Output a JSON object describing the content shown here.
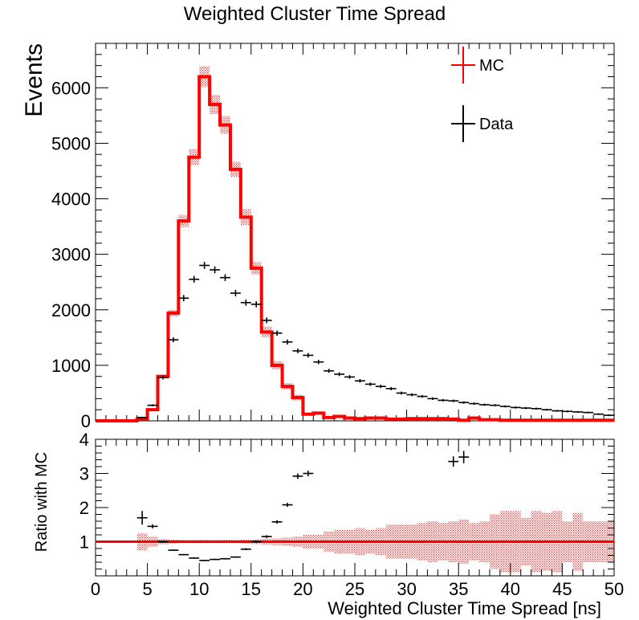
{
  "chart_data": [
    {
      "type": "histogram",
      "title": "Weighted Cluster Time Spread",
      "xlabel": "",
      "ylabel": "Events",
      "xlim": [
        0,
        50
      ],
      "ylim": [
        0,
        6800
      ],
      "yticks": [
        0,
        1000,
        2000,
        3000,
        4000,
        5000,
        6000
      ],
      "bin_width": 1,
      "bin_low_edges": [
        0,
        1,
        2,
        3,
        4,
        5,
        6,
        7,
        8,
        9,
        10,
        11,
        12,
        13,
        14,
        15,
        16,
        17,
        18,
        19,
        20,
        21,
        22,
        23,
        24,
        25,
        26,
        27,
        28,
        29,
        30,
        31,
        32,
        33,
        34,
        35,
        36,
        37,
        38,
        39,
        40,
        41,
        42,
        43,
        44,
        45,
        46,
        47,
        48,
        49
      ],
      "legend": {
        "position": "top-right",
        "entries": [
          "MC",
          "Data"
        ]
      },
      "series": [
        {
          "name": "MC",
          "style": "step",
          "color": "#ff0000",
          "values": [
            0,
            0,
            0,
            0,
            30,
            200,
            800,
            1940,
            3600,
            4750,
            6200,
            5700,
            5330,
            4530,
            3670,
            2750,
            1600,
            1000,
            620,
            420,
            120,
            140,
            60,
            80,
            50,
            40,
            50,
            50,
            30,
            30,
            40,
            40,
            40,
            40,
            30,
            10,
            50,
            20,
            20,
            10,
            10,
            10,
            10,
            10,
            10,
            10,
            10,
            10,
            10,
            10
          ],
          "band_half_width_fraction": [
            0,
            0,
            0,
            0,
            0.15,
            0.07,
            0.04,
            0.03,
            0.03,
            0.03,
            0.03,
            0.03,
            0.03,
            0.03,
            0.04,
            0.04,
            0.06,
            0.07,
            0.09,
            0.12,
            0.18,
            0.18,
            0.25,
            0.3,
            0.3,
            0.3,
            0.3,
            0.35,
            0.4,
            0.45,
            0.45,
            0.5,
            0.55,
            0.5,
            0.55,
            0.6,
            0.6,
            0.6,
            0.7,
            0.8,
            1.0,
            0.8,
            0.9,
            1.0,
            1.0,
            1.0,
            0.8,
            0.8,
            0.8,
            0.8
          ]
        },
        {
          "name": "Data",
          "style": "points",
          "color": "#000000",
          "values": [
            0,
            0,
            0,
            0,
            60,
            280,
            780,
            1460,
            2210,
            2550,
            2800,
            2720,
            2580,
            2300,
            2130,
            2100,
            1810,
            1580,
            1420,
            1260,
            1180,
            1060,
            900,
            840,
            790,
            720,
            660,
            620,
            580,
            500,
            470,
            440,
            400,
            370,
            360,
            330,
            310,
            290,
            280,
            260,
            240,
            230,
            220,
            200,
            180,
            170,
            160,
            150,
            120,
            100
          ],
          "x_error": 0.5
        }
      ]
    },
    {
      "type": "ratio",
      "title": "",
      "xlabel": "Weighted Cluster Time Spread [ns]",
      "ylabel": "Ratio with MC",
      "xlim": [
        0,
        50
      ],
      "ylim": [
        0,
        4
      ],
      "xticks": [
        0,
        5,
        10,
        15,
        20,
        25,
        30,
        35,
        40,
        45,
        50
      ],
      "yticks": [
        1,
        2,
        3,
        4
      ],
      "reference_line": 1,
      "band": {
        "color": "#ff0000",
        "half_width": [
          0,
          0,
          0,
          0,
          0.25,
          0.15,
          0.08,
          0.06,
          0.05,
          0.05,
          0.05,
          0.05,
          0.05,
          0.05,
          0.06,
          0.07,
          0.09,
          0.1,
          0.12,
          0.15,
          0.2,
          0.2,
          0.3,
          0.35,
          0.35,
          0.4,
          0.35,
          0.4,
          0.5,
          0.5,
          0.5,
          0.55,
          0.6,
          0.55,
          0.6,
          0.65,
          0.55,
          0.6,
          0.8,
          0.9,
          0.9,
          0.7,
          0.9,
          0.85,
          0.9,
          0.6,
          0.85,
          0.6,
          0.6,
          0.6
        ]
      },
      "points": [
        {
          "x": 4.5,
          "y": 1.7,
          "yerr": 0.2
        },
        {
          "x": 5.5,
          "y": 1.45,
          "yerr": 0.06
        },
        {
          "x": 6.5,
          "y": 1.0,
          "yerr": 0.03
        },
        {
          "x": 7.5,
          "y": 0.75,
          "yerr": 0.02
        },
        {
          "x": 8.5,
          "y": 0.62,
          "yerr": 0.02
        },
        {
          "x": 9.5,
          "y": 0.52,
          "yerr": 0.02
        },
        {
          "x": 10.5,
          "y": 0.45,
          "yerr": 0.02
        },
        {
          "x": 11.5,
          "y": 0.48,
          "yerr": 0.02
        },
        {
          "x": 12.5,
          "y": 0.5,
          "yerr": 0.02
        },
        {
          "x": 13.5,
          "y": 0.55,
          "yerr": 0.02
        },
        {
          "x": 14.5,
          "y": 0.78,
          "yerr": 0.03
        },
        {
          "x": 15.5,
          "y": 1.0,
          "yerr": 0.04
        },
        {
          "x": 16.5,
          "y": 1.15,
          "yerr": 0.04
        },
        {
          "x": 17.5,
          "y": 1.58,
          "yerr": 0.05
        },
        {
          "x": 18.5,
          "y": 2.08,
          "yerr": 0.06
        },
        {
          "x": 19.5,
          "y": 2.92,
          "yerr": 0.08
        },
        {
          "x": 20.5,
          "y": 3.0,
          "yerr": 0.08
        },
        {
          "x": 34.5,
          "y": 3.35,
          "yerr": 0.15
        },
        {
          "x": 35.5,
          "y": 3.48,
          "yerr": 0.18
        }
      ]
    }
  ]
}
